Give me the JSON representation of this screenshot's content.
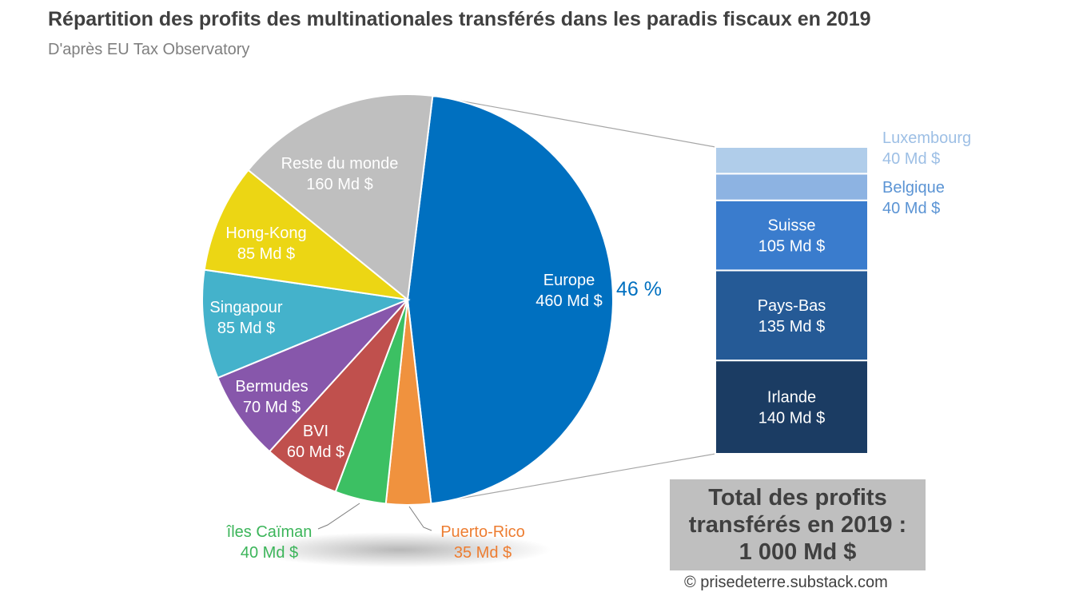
{
  "title": "Répartition des profits des multinationales transférés dans les paradis fiscaux en 2019",
  "subtitle": "D'après EU Tax Observatory",
  "chart_data": {
    "type": "pie",
    "unit": "Md $",
    "slices": [
      {
        "name": "Europe",
        "value": 460,
        "label": "460 Md $",
        "color": "#0070c0",
        "label_color": "#ffffff"
      },
      {
        "name": "Puerto-Rico",
        "value": 35,
        "label": "35 Md $",
        "color": "#f0923e",
        "label_color": "#ed7d31"
      },
      {
        "name": "îles Caïman",
        "value": 40,
        "label": "40 Md $",
        "color": "#3cc063",
        "label_color": "#3cb55a"
      },
      {
        "name": "BVI",
        "value": 60,
        "label": "60 Md $",
        "color": "#c0504d",
        "label_color": "#ffffff"
      },
      {
        "name": "Bermudes",
        "value": 70,
        "label": "70 Md $",
        "color": "#8757ab",
        "label_color": "#ffffff"
      },
      {
        "name": "Singapour",
        "value": 85,
        "label": "85 Md $",
        "color": "#44b2cb",
        "label_color": "#ffffff"
      },
      {
        "name": "Hong-Kong",
        "value": 85,
        "label": "85 Md $",
        "color": "#ecd614",
        "label_color": "#ffffff"
      },
      {
        "name": "Reste du monde",
        "value": 160,
        "label": "160 Md $",
        "color": "#bfbfbf",
        "label_color": "#ffffff"
      }
    ],
    "europe_share_label": "46 %",
    "europe_breakdown": [
      {
        "name": "Irlande",
        "value": 140,
        "label": "140 Md $",
        "color": "#1b3c63",
        "label_color": "#ffffff"
      },
      {
        "name": "Pays-Bas",
        "value": 135,
        "label": "135 Md $",
        "color": "#255a96",
        "label_color": "#ffffff"
      },
      {
        "name": "Suisse",
        "value": 105,
        "label": "105 Md $",
        "color": "#3a7ccd",
        "label_color": "#ffffff"
      },
      {
        "name": "Belgique",
        "value": 40,
        "label": "40 Md $",
        "color": "#8db3e2",
        "label_color": "#5b94d4"
      },
      {
        "name": "Luxembourg",
        "value": 40,
        "label": "40 Md $",
        "color": "#b0cdea",
        "label_color": "#9dbfe5"
      }
    ]
  },
  "total_box": {
    "line1": "Total des profits",
    "line2": "transférés en 2019 :",
    "line3": "1 000 Md $"
  },
  "credit": "© prisedeterre.substack.com"
}
